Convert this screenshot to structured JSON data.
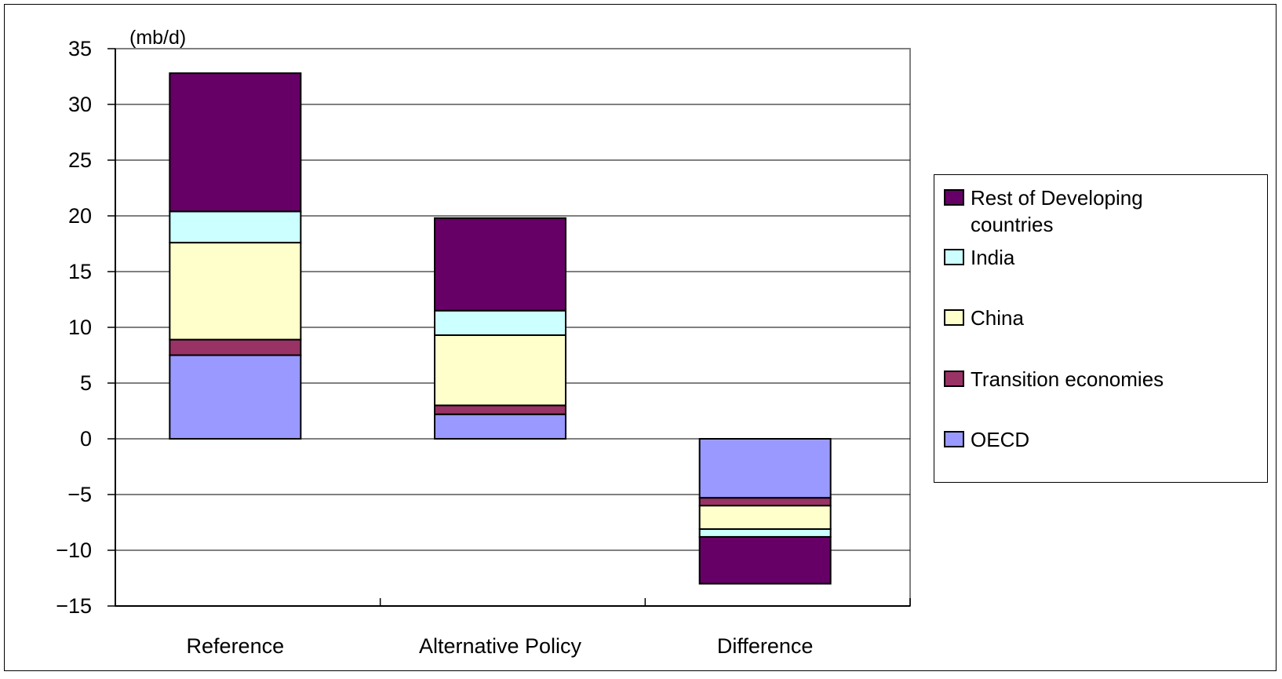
{
  "chart_data": {
    "type": "bar",
    "stacked": true,
    "unit_label": "(mb/d)",
    "categories": [
      "Reference",
      "Alternative Policy",
      "Difference"
    ],
    "ylim": [
      -15,
      35
    ],
    "yticks": [
      35,
      30,
      25,
      20,
      15,
      10,
      5,
      0,
      -5,
      -10,
      -15
    ],
    "grid": true,
    "legend_position": "right",
    "series": [
      {
        "name": "OECD",
        "color": "#9999ff",
        "values": [
          7.5,
          2.2,
          -5.3
        ]
      },
      {
        "name": "Transition economies",
        "color": "#993366",
        "values": [
          1.4,
          0.8,
          -0.7
        ]
      },
      {
        "name": "China",
        "color": "#ffffcc",
        "values": [
          8.7,
          6.3,
          -2.1
        ]
      },
      {
        "name": "India",
        "color": "#ccffff",
        "values": [
          2.8,
          2.2,
          -0.7
        ]
      },
      {
        "name": "Rest of Developing countries",
        "color": "#660066",
        "values": [
          12.4,
          8.3,
          -4.2
        ]
      }
    ]
  }
}
